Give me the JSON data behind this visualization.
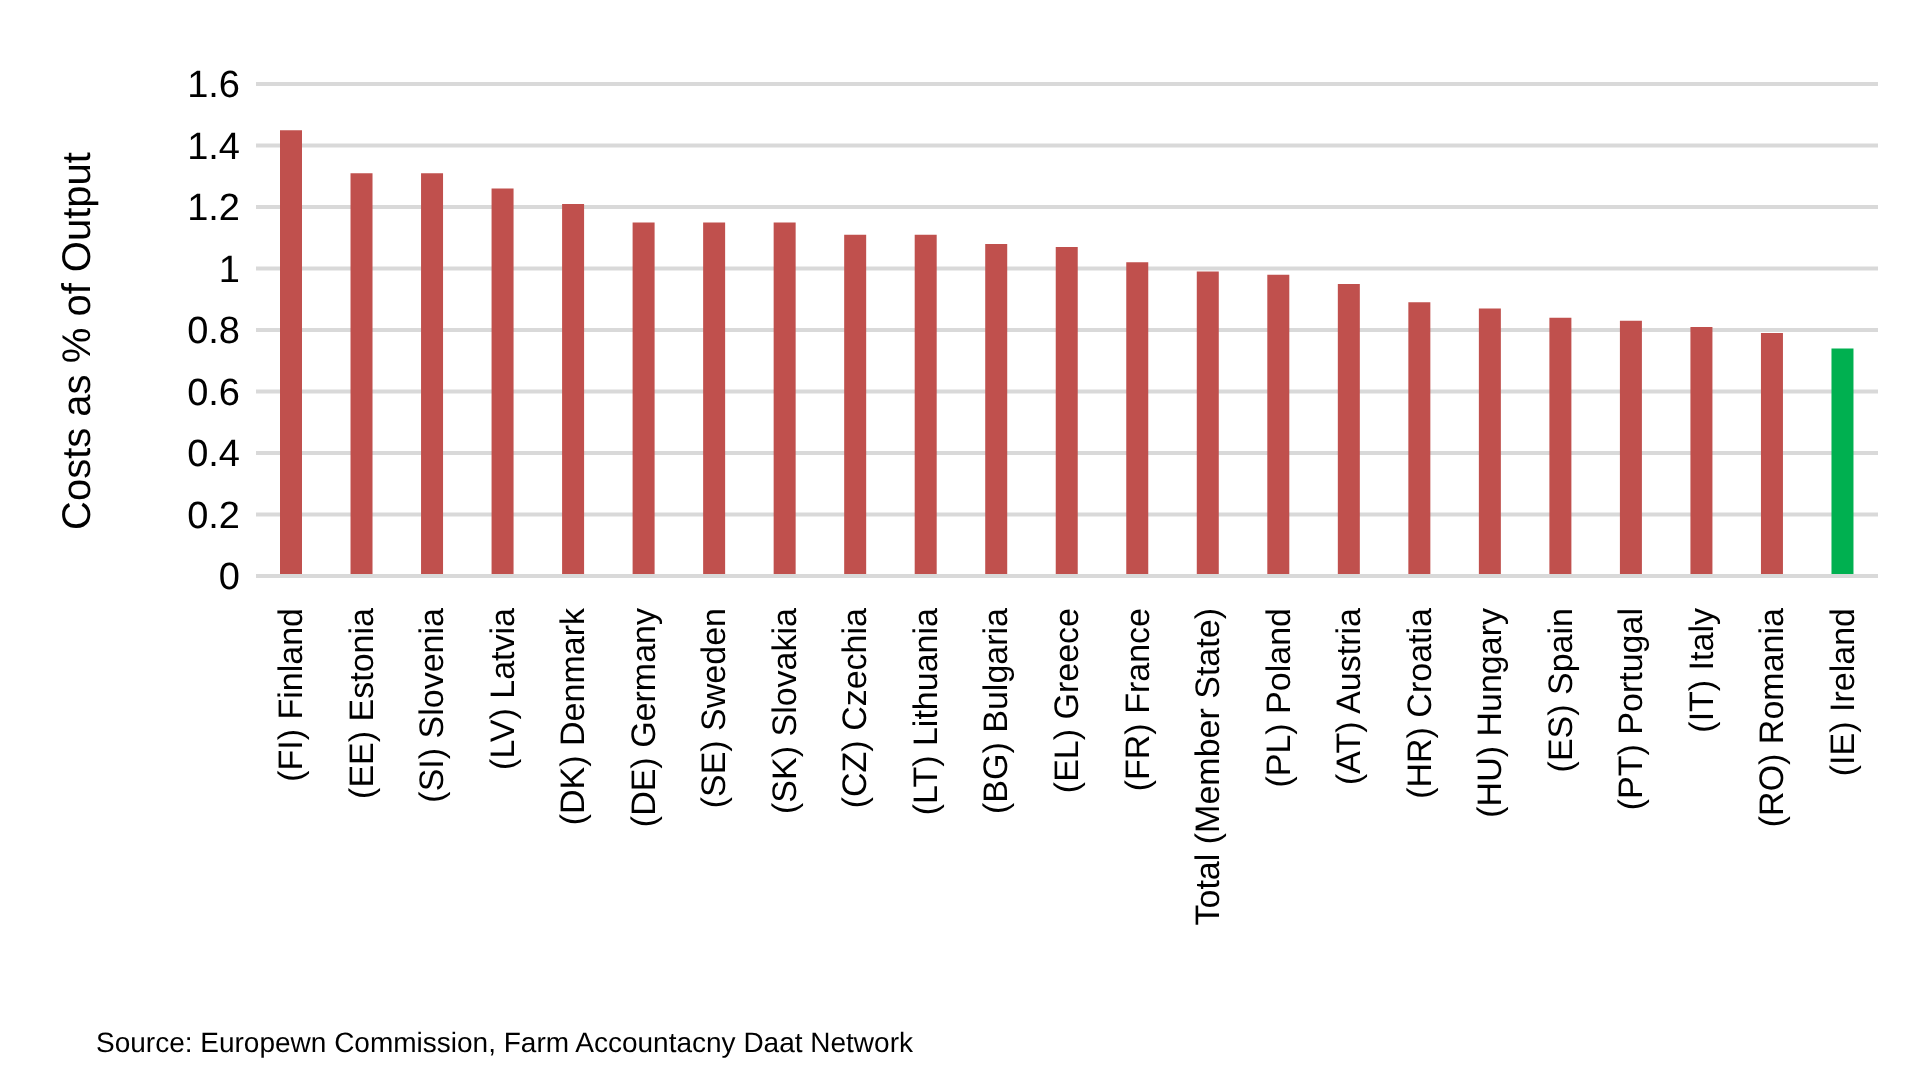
{
  "chart_data": {
    "type": "bar",
    "ylabel": "Costs as % of Output",
    "categories": [
      "(FI) Finland",
      "(EE) Estonia",
      "(SI) Slovenia",
      "(LV) Latvia",
      "(DK) Denmark",
      "(DE) Germany",
      "(SE) Sweden",
      "(SK) Slovakia",
      "(CZ) Czechia",
      "(LT) Lithuania",
      "(BG) Bulgaria",
      "(EL) Greece",
      "(FR) France",
      "Total (Member State)",
      "(PL) Poland",
      "(AT) Austria",
      "(HR) Croatia",
      "(HU) Hungary",
      "(ES) Spain",
      "(PT) Portugal",
      "(IT) Italy",
      "(RO) Romania",
      "(IE) Ireland"
    ],
    "values": [
      1.45,
      1.31,
      1.31,
      1.26,
      1.21,
      1.15,
      1.15,
      1.15,
      1.11,
      1.11,
      1.08,
      1.07,
      1.02,
      0.99,
      0.98,
      0.95,
      0.89,
      0.87,
      0.84,
      0.83,
      0.81,
      0.79,
      0.74
    ],
    "colors": [
      "#c0504d",
      "#c0504d",
      "#c0504d",
      "#c0504d",
      "#c0504d",
      "#c0504d",
      "#c0504d",
      "#c0504d",
      "#c0504d",
      "#c0504d",
      "#c0504d",
      "#c0504d",
      "#c0504d",
      "#c0504d",
      "#c0504d",
      "#c0504d",
      "#c0504d",
      "#c0504d",
      "#c0504d",
      "#c0504d",
      "#c0504d",
      "#c0504d",
      "#00b050"
    ],
    "ylim": [
      0,
      1.6
    ],
    "yticks": [
      0,
      0.2,
      0.4,
      0.6,
      0.8,
      1,
      1.2,
      1.4,
      1.6
    ],
    "grid": "y",
    "legend": false,
    "annotations": [
      "Source: Europewn Commission, Farm Accountacny Daat Network"
    ]
  }
}
